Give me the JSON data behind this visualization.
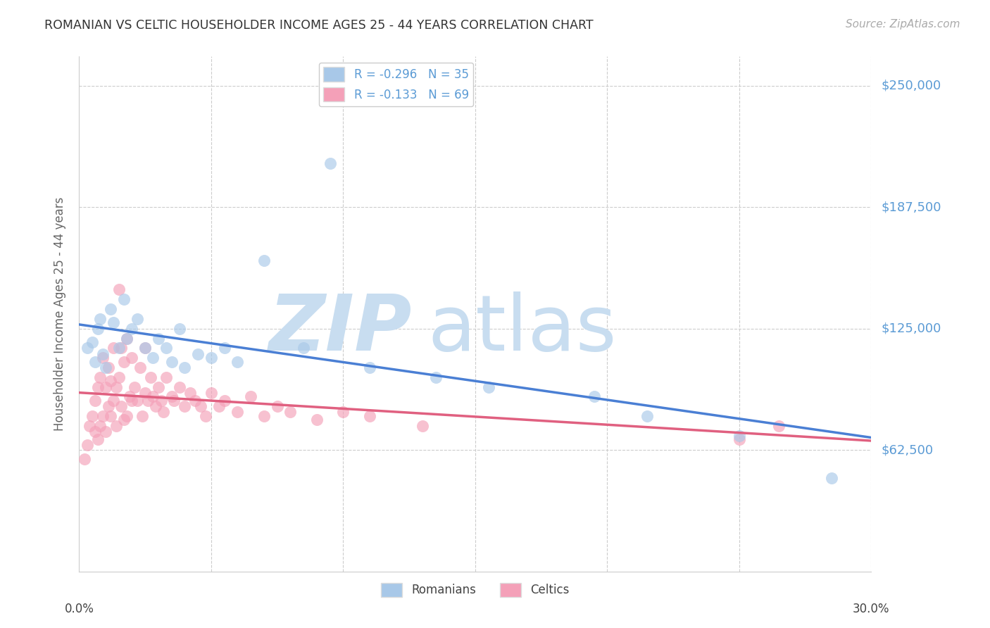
{
  "title": "ROMANIAN VS CELTIC HOUSEHOLDER INCOME AGES 25 - 44 YEARS CORRELATION CHART",
  "source": "Source: ZipAtlas.com",
  "ylabel": "Householder Income Ages 25 - 44 years",
  "xlim": [
    0.0,
    0.3
  ],
  "ylim": [
    0,
    265000
  ],
  "yticks": [
    62500,
    125000,
    187500,
    250000
  ],
  "ytick_labels": [
    "$62,500",
    "$125,000",
    "$187,500",
    "$250,000"
  ],
  "r_romanian": -0.296,
  "n_romanian": 35,
  "r_celtic": -0.133,
  "n_celtic": 69,
  "color_romanian": "#a8c8e8",
  "color_celtic": "#f4a0b8",
  "line_color_romanian": "#4a7fd4",
  "line_color_celtic": "#e06080",
  "romanians_x": [
    0.003,
    0.005,
    0.006,
    0.007,
    0.008,
    0.009,
    0.01,
    0.012,
    0.013,
    0.015,
    0.017,
    0.018,
    0.02,
    0.022,
    0.025,
    0.028,
    0.03,
    0.033,
    0.035,
    0.038,
    0.04,
    0.045,
    0.05,
    0.055,
    0.06,
    0.07,
    0.085,
    0.095,
    0.11,
    0.135,
    0.155,
    0.195,
    0.215,
    0.25,
    0.285
  ],
  "romanians_y": [
    115000,
    118000,
    108000,
    125000,
    130000,
    112000,
    105000,
    135000,
    128000,
    115000,
    140000,
    120000,
    125000,
    130000,
    115000,
    110000,
    120000,
    115000,
    108000,
    125000,
    105000,
    112000,
    110000,
    115000,
    108000,
    160000,
    115000,
    210000,
    105000,
    100000,
    95000,
    90000,
    80000,
    70000,
    48000
  ],
  "celtics_x": [
    0.002,
    0.003,
    0.004,
    0.005,
    0.006,
    0.006,
    0.007,
    0.007,
    0.008,
    0.008,
    0.009,
    0.009,
    0.01,
    0.01,
    0.011,
    0.011,
    0.012,
    0.012,
    0.013,
    0.013,
    0.014,
    0.014,
    0.015,
    0.015,
    0.016,
    0.016,
    0.017,
    0.017,
    0.018,
    0.018,
    0.019,
    0.02,
    0.02,
    0.021,
    0.022,
    0.023,
    0.024,
    0.025,
    0.025,
    0.026,
    0.027,
    0.028,
    0.029,
    0.03,
    0.031,
    0.032,
    0.033,
    0.035,
    0.036,
    0.038,
    0.04,
    0.042,
    0.044,
    0.046,
    0.048,
    0.05,
    0.053,
    0.055,
    0.06,
    0.065,
    0.07,
    0.075,
    0.08,
    0.09,
    0.1,
    0.11,
    0.13,
    0.25,
    0.265
  ],
  "celtics_y": [
    58000,
    65000,
    75000,
    80000,
    72000,
    88000,
    68000,
    95000,
    75000,
    100000,
    80000,
    110000,
    72000,
    95000,
    85000,
    105000,
    80000,
    98000,
    88000,
    115000,
    75000,
    95000,
    145000,
    100000,
    85000,
    115000,
    78000,
    108000,
    80000,
    120000,
    90000,
    88000,
    110000,
    95000,
    88000,
    105000,
    80000,
    92000,
    115000,
    88000,
    100000,
    90000,
    85000,
    95000,
    88000,
    82000,
    100000,
    90000,
    88000,
    95000,
    85000,
    92000,
    88000,
    85000,
    80000,
    92000,
    85000,
    88000,
    82000,
    90000,
    80000,
    85000,
    82000,
    78000,
    82000,
    80000,
    75000,
    68000,
    75000
  ]
}
